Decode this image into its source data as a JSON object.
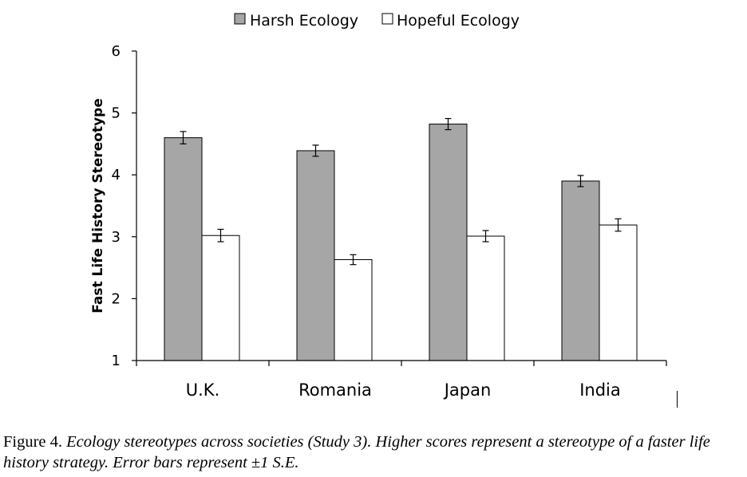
{
  "chart_data": {
    "type": "bar",
    "categories": [
      "U.K.",
      "Romania",
      "Japan",
      "India"
    ],
    "series": [
      {
        "name": "Harsh Ecology",
        "values": [
          4.6,
          4.39,
          4.82,
          3.9
        ],
        "errors": [
          0.1,
          0.09,
          0.09,
          0.09
        ],
        "color": "#a6a6a6"
      },
      {
        "name": "Hopeful Ecology",
        "values": [
          3.02,
          2.63,
          3.01,
          3.19
        ],
        "errors": [
          0.1,
          0.08,
          0.09,
          0.1
        ],
        "color": "#ffffff"
      }
    ],
    "title": "",
    "xlabel": "",
    "ylabel": "Fast Life History Stereotype",
    "ylim": [
      1,
      6
    ],
    "yticks": [
      "1",
      "2",
      "3",
      "4",
      "5",
      "6"
    ],
    "grid": false,
    "legend_position": "top-center"
  },
  "caption": {
    "label": "Figure 4.",
    "text": " Ecology stereotypes across societies (Study 3). Higher scores represent a stereotype of a faster life history strategy. Error bars represent ±1 S.E."
  }
}
